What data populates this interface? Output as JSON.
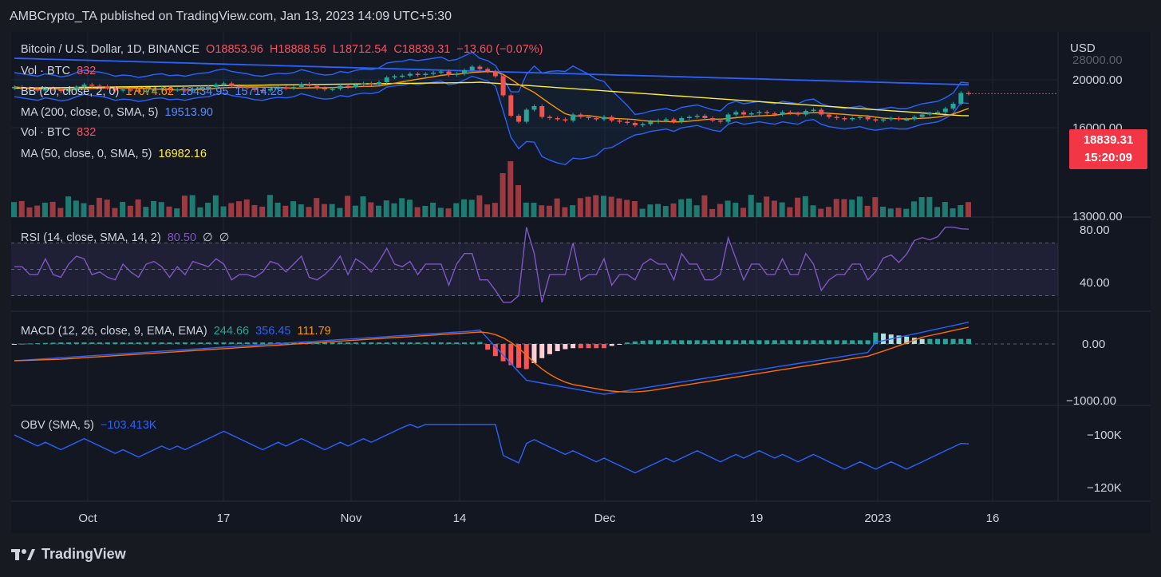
{
  "caption": "AMBCrypto_TA published on TradingView.com, Jan 13, 2023 14:09 UTC+5:30",
  "currency": "USD",
  "legend": {
    "symbol": "Bitcoin / U.S. Dollar, 1D, BINANCE",
    "open": "O18853.96",
    "high": "H18888.56",
    "low": "L18712.54",
    "close": "C18839.31",
    "change": "−13.60 (−0.07%)",
    "vol_label": "Vol · BTC",
    "vol_value": "832",
    "bb_label": "BB (20, close, 2, 0)",
    "bb_basis": "17074.62",
    "bb_upper": "18434.95",
    "bb_lower": "15714.28",
    "ma200_label": "MA (200, close, 0, SMA, 5)",
    "ma200_value": "19513.90",
    "vol2_label": "Vol · BTC",
    "vol2_value": "832",
    "ma50_label": "MA (50, close, 0, SMA, 5)",
    "ma50_value": "16982.16",
    "rsi_label": "RSI (14, close, SMA, 14, 2)",
    "rsi_value": "80.50",
    "rsi_extra1": "∅",
    "rsi_extra2": "∅",
    "macd_label": "MACD (12, 26, close, 9, EMA, EMA)",
    "macd_hist": "244.66",
    "macd_line": "356.45",
    "macd_signal": "111.79",
    "obv_label": "OBV (SMA, 5)",
    "obv_value": "−103.413K"
  },
  "price_tag": {
    "price": "18839.31",
    "countdown": "15:20:09"
  },
  "axis": {
    "price_ticks": [
      "20000.00",
      "16000.00",
      "13000.00"
    ],
    "price_top_partial": "28000.00",
    "rsi_ticks": [
      "80.00",
      "40.00"
    ],
    "macd_ticks": [
      "0.00",
      "−1000.00"
    ],
    "obv_ticks": [
      "−100K",
      "−120K"
    ],
    "time_ticks": [
      "Oct",
      "17",
      "Nov",
      "14",
      "Dec",
      "19",
      "2023",
      "16"
    ]
  },
  "footer": {
    "brand": "TradingView"
  },
  "chart_data": {
    "type": "candlestick",
    "title": "Bitcoin / U.S. Dollar, 1D, BINANCE",
    "ylabel": "USD",
    "ylim": [
      12500,
      28000
    ],
    "close": [
      19400,
      19300,
      19200,
      19100,
      19300,
      19200,
      19050,
      19150,
      19400,
      19600,
      19500,
      19450,
      19300,
      19100,
      19200,
      19150,
      19000,
      19100,
      19250,
      19300,
      19150,
      19200,
      19100,
      19250,
      19350,
      19400,
      19600,
      19700,
      19500,
      19400,
      19300,
      19150,
      19100,
      19250,
      19350,
      19300,
      19400,
      19650,
      19500,
      19300,
      19200,
      19250,
      19500,
      19400,
      19600,
      19700,
      19650,
      19800,
      20200,
      20300,
      20350,
      20500,
      20400,
      20500,
      20600,
      20700,
      20400,
      20500,
      20800,
      21100,
      20900,
      20700,
      20300,
      18700,
      17000,
      16500,
      17500,
      17800,
      16900,
      16800,
      16700,
      16600,
      17100,
      16900,
      16800,
      16700,
      16900,
      16600,
      16500,
      16400,
      16200,
      16300,
      16500,
      16600,
      16700,
      16500,
      16800,
      16900,
      17000,
      16800,
      16600,
      16500,
      17100,
      17300,
      17100,
      17200,
      17300,
      17200,
      17100,
      17300,
      17200,
      17100,
      17400,
      17500,
      17100,
      16900,
      16800,
      16700,
      16800,
      16900,
      16700,
      16600,
      16700,
      16800,
      16700,
      16700,
      16900,
      17100,
      17200,
      17300,
      17600,
      18000,
      18900,
      18839
    ],
    "rsi_last": 80.5,
    "macd_last": {
      "histogram": 244.66,
      "macd": 356.45,
      "signal": 111.79
    },
    "obv_last": "-103.413K",
    "bollinger_last": {
      "basis": 17074.62,
      "upper": 18434.95,
      "lower": 15714.28
    },
    "ma200_last": 19513.9,
    "ma50_last": 16982.16
  }
}
